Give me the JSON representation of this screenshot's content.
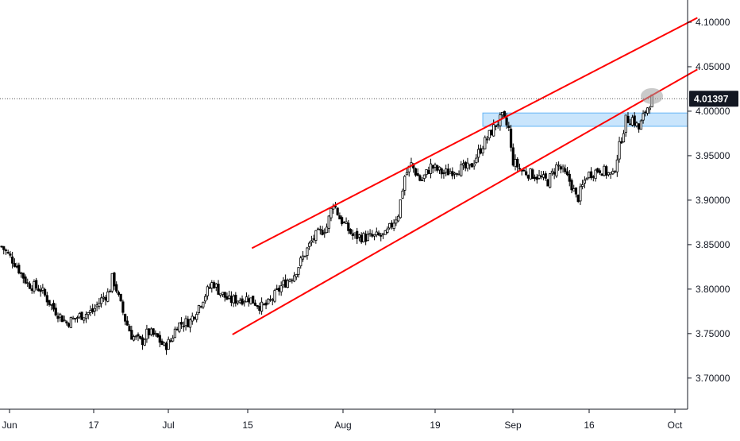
{
  "chart_data": {
    "type": "candlestick",
    "title": "",
    "xlabel": "",
    "ylabel": "",
    "ylim": [
      3.665,
      4.125
    ],
    "grid": false,
    "x_ticks": [
      "Jun",
      "17",
      "Jul",
      "15",
      "Aug",
      "19",
      "Sep",
      "16",
      "Oct"
    ],
    "y_ticks": [
      "3.70000",
      "3.75000",
      "3.80000",
      "3.85000",
      "3.90000",
      "3.95000",
      "4.00000",
      "4.05000",
      "4.10000"
    ],
    "last_price": "4.01397",
    "last_price_value": 4.01397,
    "series": [
      {
        "values": [
          [
            0.0,
            3.848
          ],
          [
            0.02,
            3.83
          ],
          [
            0.04,
            3.806
          ],
          [
            0.06,
            3.8
          ],
          [
            0.08,
            3.778
          ],
          [
            0.1,
            3.762
          ],
          [
            0.12,
            3.77
          ],
          [
            0.14,
            3.775
          ],
          [
            0.155,
            3.79
          ],
          [
            0.165,
            3.796
          ],
          [
            0.17,
            3.812
          ],
          [
            0.175,
            3.805
          ],
          [
            0.18,
            3.79
          ],
          [
            0.19,
            3.766
          ],
          [
            0.2,
            3.748
          ],
          [
            0.215,
            3.74
          ],
          [
            0.225,
            3.752
          ],
          [
            0.24,
            3.745
          ],
          [
            0.25,
            3.735
          ],
          [
            0.26,
            3.742
          ],
          [
            0.27,
            3.76
          ],
          [
            0.29,
            3.764
          ],
          [
            0.31,
            3.79
          ],
          [
            0.325,
            3.808
          ],
          [
            0.335,
            3.797
          ],
          [
            0.35,
            3.787
          ],
          [
            0.38,
            3.79
          ],
          [
            0.4,
            3.78
          ],
          [
            0.41,
            3.783
          ],
          [
            0.43,
            3.803
          ],
          [
            0.45,
            3.817
          ],
          [
            0.465,
            3.838
          ],
          [
            0.48,
            3.858
          ],
          [
            0.5,
            3.87
          ],
          [
            0.51,
            3.898
          ],
          [
            0.52,
            3.88
          ],
          [
            0.54,
            3.86
          ],
          [
            0.56,
            3.858
          ],
          [
            0.59,
            3.86
          ],
          [
            0.61,
            3.885
          ],
          [
            0.62,
            3.927
          ],
          [
            0.63,
            3.94
          ],
          [
            0.645,
            3.921
          ],
          [
            0.66,
            3.938
          ],
          [
            0.68,
            3.93
          ],
          [
            0.7,
            3.935
          ],
          [
            0.72,
            3.936
          ],
          [
            0.74,
            3.962
          ],
          [
            0.76,
            3.985
          ],
          [
            0.77,
            3.993
          ],
          [
            0.78,
            3.98
          ],
          [
            0.785,
            3.945
          ],
          [
            0.8,
            3.933
          ],
          [
            0.82,
            3.928
          ],
          [
            0.84,
            3.921
          ],
          [
            0.855,
            3.94
          ],
          [
            0.875,
            3.92
          ],
          [
            0.885,
            3.9
          ],
          [
            0.9,
            3.928
          ],
          [
            0.92,
            3.935
          ],
          [
            0.94,
            3.927
          ],
          [
            0.95,
            3.96
          ],
          [
            0.96,
            3.99
          ],
          [
            0.97,
            3.992
          ],
          [
            0.98,
            3.98
          ],
          [
            0.99,
            4.0
          ],
          [
            1.0,
            4.014
          ]
        ]
      }
    ],
    "trendlines": [
      {
        "color": "#ff0000",
        "from": [
          0.385,
          3.846
        ],
        "to": [
          1.07,
          4.105
        ]
      },
      {
        "color": "#ff0000",
        "from": [
          0.355,
          3.749
        ],
        "to": [
          1.07,
          4.047
        ]
      }
    ],
    "zone": {
      "color": "#90caf9",
      "y_range": [
        3.983,
        3.998
      ],
      "x_start": 0.74
    },
    "highlight_ellipse": {
      "color": "#9e9e9e",
      "center": [
        1.0,
        4.017
      ]
    },
    "colors": {
      "candle": "#000000",
      "trendline": "#ff0000",
      "zone_fill": "#bbdefb",
      "zone_stroke": "#64b5f6",
      "price_tag": "#131722",
      "axis_text": "#131722"
    }
  }
}
